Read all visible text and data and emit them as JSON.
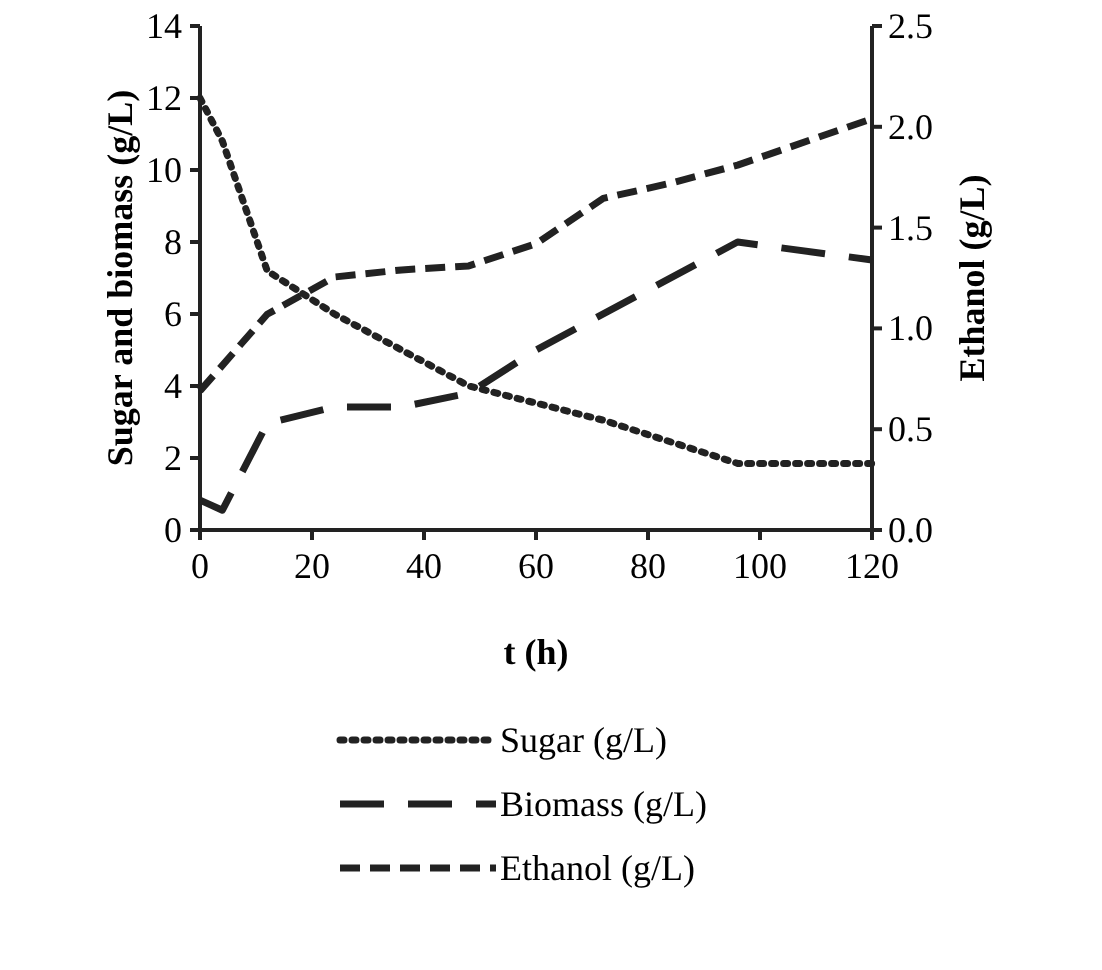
{
  "chart_data": {
    "type": "line",
    "xlabel": "t (h)",
    "ylabel": "Sugar and biomass (g/L)",
    "y2label": "Ethanol (g/L)",
    "xlim": [
      0,
      120
    ],
    "xticks": [
      0,
      20,
      40,
      60,
      80,
      100,
      120
    ],
    "ylim": [
      0,
      14
    ],
    "yticks": [
      0,
      2,
      4,
      6,
      8,
      10,
      12,
      14
    ],
    "y2lim": [
      0,
      2.5
    ],
    "y2ticks": [
      {
        "value": 0,
        "label": "0.0"
      },
      {
        "value": 0.5,
        "label": "0.5"
      },
      {
        "value": 1,
        "label": "1.0"
      },
      {
        "value": 1.5,
        "label": "1.5"
      },
      {
        "value": 2,
        "label": "2.0"
      },
      {
        "value": 2.5,
        "label": "2.5"
      }
    ],
    "legend": "bottom",
    "grid": false,
    "marker": "none",
    "series": [
      {
        "name": "Sugar (g/L)",
        "color": "#222222",
        "line_style": "dotted",
        "x": [
          0,
          4,
          12,
          24,
          48,
          72,
          96,
          120
        ],
        "values": [
          12.0,
          10.8,
          7.2,
          6.0,
          4.0,
          3.05,
          1.85,
          1.85
        ]
      },
      {
        "name": "Biomass (g/L)",
        "color": "#222222",
        "line_style": "longdash",
        "x": [
          0,
          4,
          12,
          24,
          36,
          48,
          60,
          96,
          120
        ],
        "values": [
          0.83,
          0.55,
          2.96,
          3.42,
          3.42,
          3.8,
          5.0,
          8.0,
          7.5
        ]
      },
      {
        "name": "Ethanol (g/L)",
        "color": "#222222",
        "line_style": "dashed",
        "axis": "y2",
        "x": [
          0,
          12,
          24,
          36,
          48,
          60,
          72,
          84,
          96,
          120
        ],
        "values": [
          0.69,
          1.07,
          1.255,
          1.29,
          1.31,
          1.42,
          1.645,
          1.72,
          1.81,
          2.04
        ]
      }
    ]
  }
}
